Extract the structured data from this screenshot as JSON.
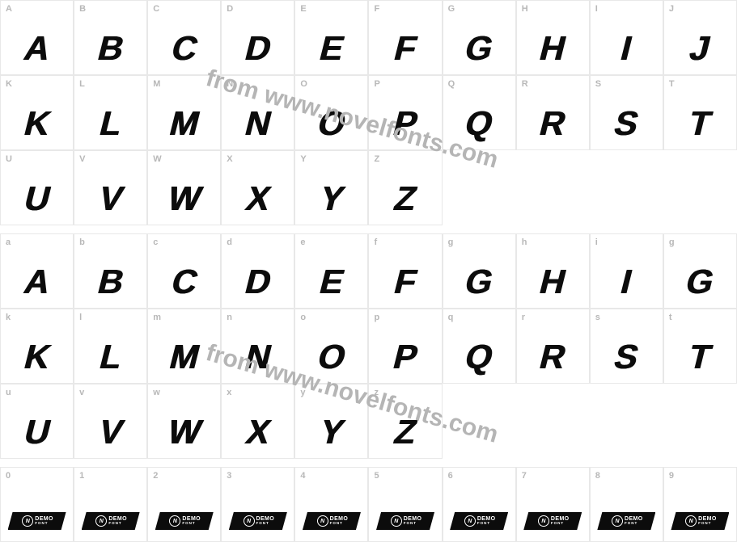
{
  "watermark_text": "from www.novelfonts.com",
  "label_color": "#b8b8b8",
  "glyph_color": "#0c0c0c",
  "border_color": "#e8e8e8",
  "rows": [
    {
      "labels": [
        "A",
        "B",
        "C",
        "D",
        "E",
        "F",
        "G",
        "H",
        "I",
        "J"
      ],
      "glyphs": [
        "A",
        "B",
        "C",
        "D",
        "E",
        "F",
        "G",
        "H",
        "I",
        "J"
      ]
    },
    {
      "labels": [
        "K",
        "L",
        "M",
        "N",
        "O",
        "P",
        "Q",
        "R",
        "S",
        "T"
      ],
      "glyphs": [
        "K",
        "L",
        "M",
        "N",
        "O",
        "P",
        "Q",
        "R",
        "S",
        "T"
      ]
    },
    {
      "labels": [
        "U",
        "V",
        "W",
        "X",
        "Y",
        "Z",
        "",
        "",
        "",
        ""
      ],
      "glyphs": [
        "U",
        "V",
        "W",
        "X",
        "Y",
        "Z",
        "",
        "",
        "",
        ""
      ]
    },
    {
      "labels": [
        "a",
        "b",
        "c",
        "d",
        "e",
        "f",
        "g",
        "h",
        "i",
        "g"
      ],
      "glyphs": [
        "A",
        "B",
        "C",
        "D",
        "E",
        "F",
        "G",
        "H",
        "I",
        "G"
      ]
    },
    {
      "labels": [
        "k",
        "l",
        "m",
        "n",
        "o",
        "p",
        "q",
        "r",
        "s",
        "t"
      ],
      "glyphs": [
        "K",
        "L",
        "M",
        "N",
        "O",
        "P",
        "Q",
        "R",
        "S",
        "T"
      ]
    },
    {
      "labels": [
        "u",
        "v",
        "w",
        "x",
        "y",
        "z",
        "",
        "",
        "",
        ""
      ],
      "glyphs": [
        "U",
        "V",
        "W",
        "X",
        "Y",
        "Z",
        "",
        "",
        "",
        ""
      ]
    },
    {
      "labels": [
        "0",
        "1",
        "2",
        "3",
        "4",
        "5",
        "6",
        "7",
        "8",
        "9"
      ],
      "glyphs": [
        "",
        "",
        "",
        "",
        "",
        "",
        "",
        "",
        "",
        ""
      ],
      "demo": true
    }
  ],
  "demo_badge": {
    "circle_text": "N",
    "line1": "DEMO",
    "line2": "FONT"
  }
}
